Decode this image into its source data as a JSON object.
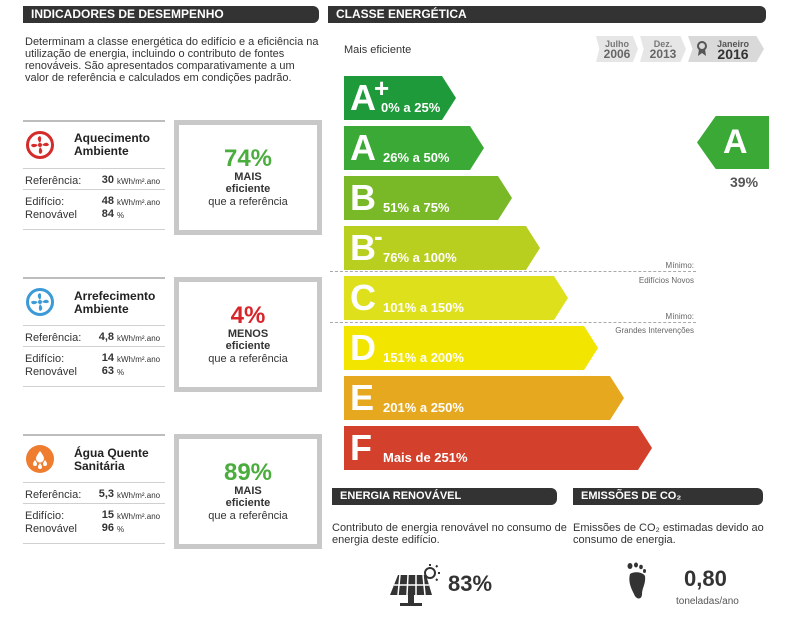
{
  "left_header": "INDICADORES DE DESEMPENHO",
  "intro": "Determinam a classe energética do edifício e a eficiência na utilização de energia, incluindo o contributo de fontes renováveis. São apresentados comparativamente a um valor de referência e calculados em condições padrão.",
  "indicators": [
    {
      "title_1": "Aquecimento",
      "title_2": "Ambiente",
      "ref_label": "Referência:",
      "ref_value": "30",
      "ref_unit": "kWh/m².ano",
      "building_label": "Edifício:",
      "building_value": "48",
      "building_unit": "kWh/m².ano",
      "renewable_label": "Renovável",
      "renewable_value": "84",
      "renewable_unit": "%",
      "pct": "74%",
      "word": "MAIS",
      "desc_1": "eficiente",
      "desc_2": "que a referência",
      "color": "#4aad3d"
    },
    {
      "title_1": "Arrefecimento",
      "title_2": "Ambiente",
      "ref_label": "Referência:",
      "ref_value": "4,8",
      "ref_unit": "kWh/m².ano",
      "building_label": "Edifício:",
      "building_value": "14",
      "building_unit": "kWh/m².ano",
      "renewable_label": "Renovável",
      "renewable_value": "63",
      "renewable_unit": "%",
      "pct": "4%",
      "word": "MENOS",
      "desc_1": "eficiente",
      "desc_2": "que a referência",
      "color": "#d8232a"
    },
    {
      "title_1": "Água Quente",
      "title_2": "Sanitária",
      "ref_label": "Referência:",
      "ref_value": "5,3",
      "ref_unit": "kWh/m².ano",
      "building_label": "Edifício:",
      "building_value": "15",
      "building_unit": "kWh/m².ano",
      "renewable_label": "Renovável",
      "renewable_value": "96",
      "renewable_unit": "%",
      "pct": "89%",
      "word": "MAIS",
      "desc_1": "eficiente",
      "desc_2": "que a referência",
      "color": "#4aad3d"
    }
  ],
  "right_header": "CLASSE ENERGÉTICA",
  "most_efficient": "Mais eficiente",
  "dates": [
    {
      "month": "Julho",
      "year": "2006"
    },
    {
      "month": "Dez.",
      "year": "2013"
    },
    {
      "month": "Janeiro",
      "year": "2016"
    }
  ],
  "classes": [
    {
      "letter": "A",
      "sup": "+",
      "range": "0% a 25%",
      "color": "#1f9a3a"
    },
    {
      "letter": "A",
      "sup": "",
      "range": "26% a 50%",
      "color": "#3aa935"
    },
    {
      "letter": "B",
      "sup": "",
      "range": "51% a 75%",
      "color": "#79b928"
    },
    {
      "letter": "B",
      "sup": "-",
      "range": "76% a 100%",
      "color": "#b9cf1f"
    },
    {
      "letter": "C",
      "sup": "",
      "range": "101% a 150%",
      "color": "#dfe01c"
    },
    {
      "letter": "D",
      "sup": "",
      "range": "151% a 200%",
      "color": "#f2e500"
    },
    {
      "letter": "E",
      "sup": "",
      "range": "201% a 250%",
      "color": "#e6a81f"
    },
    {
      "letter": "F",
      "sup": "",
      "range": "Mais de 251%",
      "color": "#d3402b"
    }
  ],
  "minimo_1_a": "Mínimo:",
  "minimo_1_b": "Edifícios Novos",
  "minimo_2_a": "Mínimo:",
  "minimo_2_b": "Grandes Intervenções",
  "current_class": "A",
  "current_pct": "39%",
  "renewable_header": "ENERGIA RENOVÁVEL",
  "renewable_text": "Contributo de energia renovável no consumo de energia deste edifício.",
  "renewable_pct": "83%",
  "co2_header": "EMISSÕES DE CO₂",
  "co2_text": "Emissões de CO₂ estimadas devido ao consumo de energia.",
  "co2_value": "0,80",
  "co2_unit": "toneladas/ano"
}
